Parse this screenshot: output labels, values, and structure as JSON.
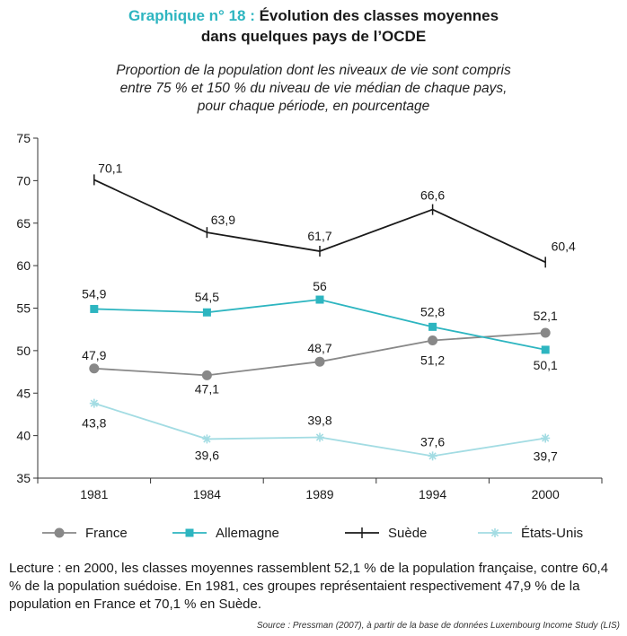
{
  "header": {
    "title_prefix": "Graphique n° 18 :",
    "title_line1": " Évolution des classes moyennes",
    "title_line2": "dans quelques pays de l’OCDE",
    "subtitle_lines": [
      "Proportion de la population dont les niveaux de vie sont compris",
      "entre 75 % et 150 % du niveau de vie médian de chaque pays,",
      "pour chaque période, en pourcentage"
    ]
  },
  "chart_data": {
    "type": "line",
    "categories": [
      "1981",
      "1984",
      "1989",
      "1994",
      "2000"
    ],
    "ylim": [
      35,
      75
    ],
    "yticks": [
      35,
      40,
      45,
      50,
      55,
      60,
      65,
      70,
      75
    ],
    "grid": false,
    "legend_position": "bottom",
    "series": [
      {
        "name": "France",
        "values": [
          47.9,
          47.1,
          48.7,
          51.2,
          52.1
        ],
        "labels": [
          "47,9",
          "47,1",
          "48,7",
          "51,2",
          "52,1"
        ],
        "color": "#888888",
        "marker": "circle"
      },
      {
        "name": "Allemagne",
        "values": [
          54.9,
          54.5,
          56,
          52.8,
          50.1
        ],
        "labels": [
          "54,9",
          "54,5",
          "56",
          "52,8",
          "50,1"
        ],
        "color": "#2db5c0",
        "marker": "square"
      },
      {
        "name": "Suède",
        "values": [
          70.1,
          63.9,
          61.7,
          66.6,
          60.4
        ],
        "labels": [
          "70,1",
          "63,9",
          "61,7",
          "66,6",
          "60,4"
        ],
        "color": "#1a1a1a",
        "marker": "tick"
      },
      {
        "name": "États-Unis",
        "values": [
          43.8,
          39.6,
          39.8,
          37.6,
          39.7
        ],
        "labels": [
          "43,8",
          "39,6",
          "39,8",
          "37,6",
          "39,7"
        ],
        "color": "#a3dce3",
        "marker": "star"
      }
    ]
  },
  "footer": {
    "reading": "Lecture : en 2000, les classes moyennes rassemblent 52,1 % de la population française, contre 60,4 % de la population suédoise. En 1981, ces groupes représentaient respecti­vement 47,9 % de la population en France et 70,1 % en Suède.",
    "source": "Source : Pressman (2007), à partir de la base de données Luxembourg Income Study (LIS)"
  }
}
